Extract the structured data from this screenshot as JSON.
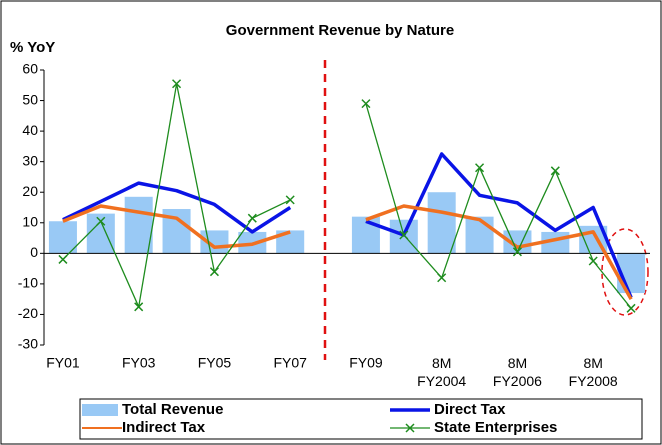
{
  "chart_data": {
    "type": "line",
    "title": "Government Revenue by Nature",
    "y_label": "% YoY",
    "categories": [
      "FY01",
      null,
      "FY03",
      null,
      "FY05",
      null,
      "FY07",
      null,
      "FY09",
      null,
      "8M FY2004",
      null,
      "8M FY2006",
      null,
      "8M FY2008",
      null
    ],
    "ylim": [
      -30,
      60
    ],
    "yticks": [
      -30,
      -20,
      -10,
      0,
      10,
      20,
      30,
      40,
      50,
      60
    ],
    "grid": false,
    "legend": "bottom",
    "series": [
      {
        "name": "Total Revenue",
        "kind": "bar",
        "color": "#99c9f5",
        "values": [
          10.5,
          13,
          18.5,
          14.5,
          7.5,
          7,
          7.5,
          null,
          12,
          11,
          20,
          12,
          7.5,
          7,
          9,
          -13
        ]
      },
      {
        "name": "Direct Tax",
        "kind": "line",
        "color": "#0a14e6",
        "values": [
          11,
          17,
          23,
          20.5,
          16,
          7,
          15,
          null,
          10.5,
          6,
          32.5,
          19,
          16.5,
          7.5,
          15,
          -14.5
        ]
      },
      {
        "name": "Indirect Tax",
        "kind": "line",
        "color": "#f07020",
        "values": [
          10.5,
          15.5,
          13.5,
          11.5,
          2,
          3,
          7,
          null,
          11,
          15.5,
          13.5,
          11,
          2,
          4.5,
          7,
          -15
        ]
      },
      {
        "name": "State Enterprises",
        "kind": "marker-line",
        "color": "#1e8c1e",
        "values": [
          -2,
          10.5,
          -17.5,
          55.5,
          -6,
          11.5,
          17.5,
          null,
          49,
          6,
          -8,
          28,
          0.5,
          27,
          -2.5,
          -18
        ]
      }
    ]
  }
}
